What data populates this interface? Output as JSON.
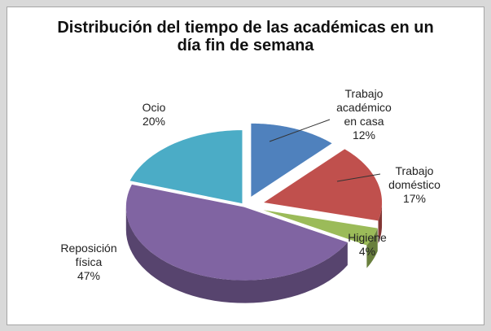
{
  "chart_data": {
    "type": "pie",
    "title": "Distribución del tiempo de las académicas en un día fin de semana",
    "categories": [
      "Trabajo académico en casa",
      "Trabajo doméstico",
      "Higiene",
      "Reposición física",
      "Ocio"
    ],
    "values": [
      12,
      17,
      4,
      47,
      20
    ],
    "value_labels": [
      "12%",
      "17%",
      "4%",
      "47%",
      "20%"
    ],
    "colors": [
      "#4f81bd",
      "#c0504d",
      "#9bbb59",
      "#8064a2",
      "#4bacc6"
    ]
  }
}
